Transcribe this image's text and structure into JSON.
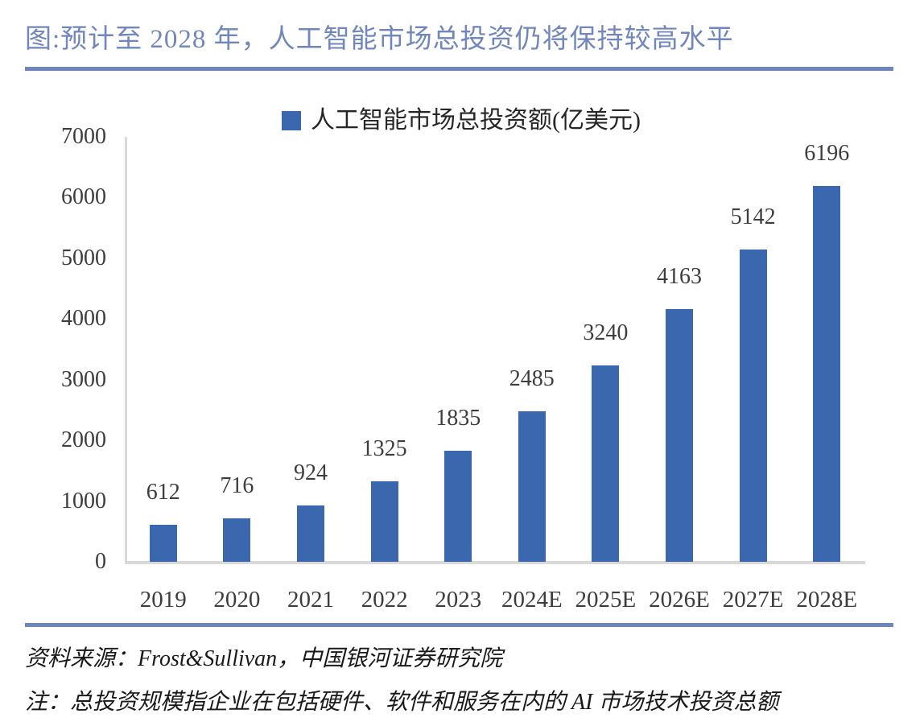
{
  "header": {
    "title": "图:预计至 2028 年，人工智能市场总投资仍将保持较高水平"
  },
  "legend": {
    "label": "人工智能市场总投资额(亿美元)"
  },
  "chart_data": {
    "type": "bar",
    "title": "",
    "categories": [
      "2019",
      "2020",
      "2021",
      "2022",
      "2023",
      "2024E",
      "2025E",
      "2026E",
      "2027E",
      "2028E"
    ],
    "values": [
      612,
      716,
      924,
      1325,
      1835,
      2485,
      3240,
      4163,
      5142,
      6196
    ],
    "series_name": "人工智能市场总投资额(亿美元)",
    "xlabel": "",
    "ylabel": "",
    "ylim": [
      0,
      7000
    ],
    "ytick_step": 1000,
    "yticks": [
      0,
      1000,
      2000,
      3000,
      4000,
      5000,
      6000,
      7000
    ],
    "grid": false,
    "legend_position": "top-center",
    "data_labels": "outside-end",
    "bar_color": "#3A67AE"
  },
  "footer": {
    "source": "资料来源：Frost&Sullivan，中国银河证券研究院",
    "note": "注：总投资规模指企业在包括硬件、软件和服务在内的 AI 市场技术投资总额"
  },
  "colors": {
    "bar": "#3A67AE",
    "title_text": "#7086BC",
    "divider": "#6E86BD",
    "axis_line": "#D9D9D9",
    "label_text": "#3D3D3D"
  }
}
